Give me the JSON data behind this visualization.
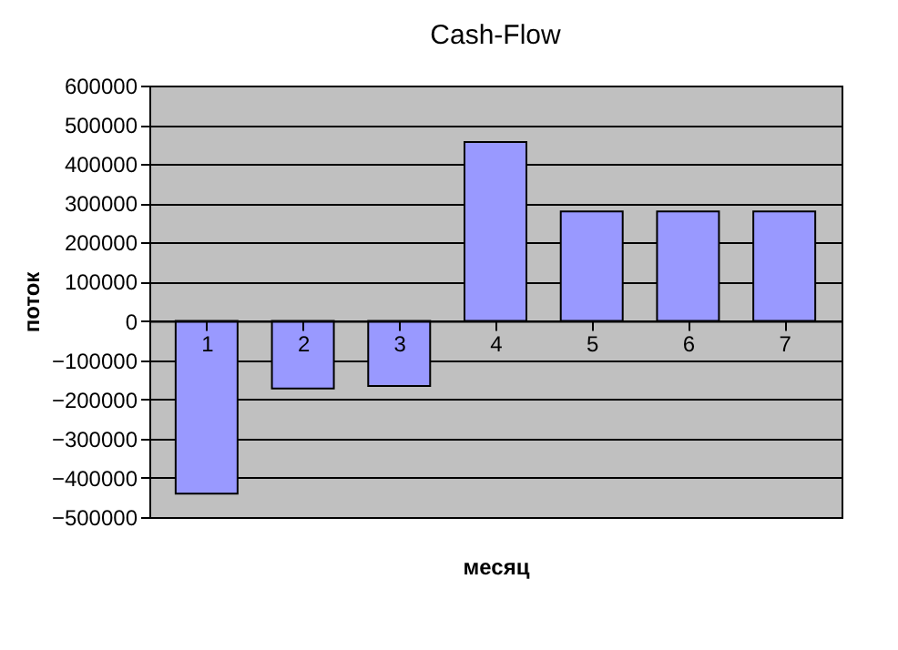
{
  "chart_data": {
    "type": "bar",
    "title": "Cash-Flow",
    "xlabel": "месяц",
    "ylabel": "поток",
    "categories": [
      "1",
      "2",
      "3",
      "4",
      "5",
      "6",
      "7"
    ],
    "values": [
      -440000,
      -172000,
      -166000,
      456000,
      279000,
      279000,
      279000
    ],
    "color": "#9999ff",
    "ylim": [
      -500000,
      600000
    ],
    "yticks": [
      -500000,
      -400000,
      -300000,
      -200000,
      -100000,
      0,
      100000,
      200000,
      300000,
      400000,
      500000,
      600000
    ],
    "grid": "y"
  }
}
